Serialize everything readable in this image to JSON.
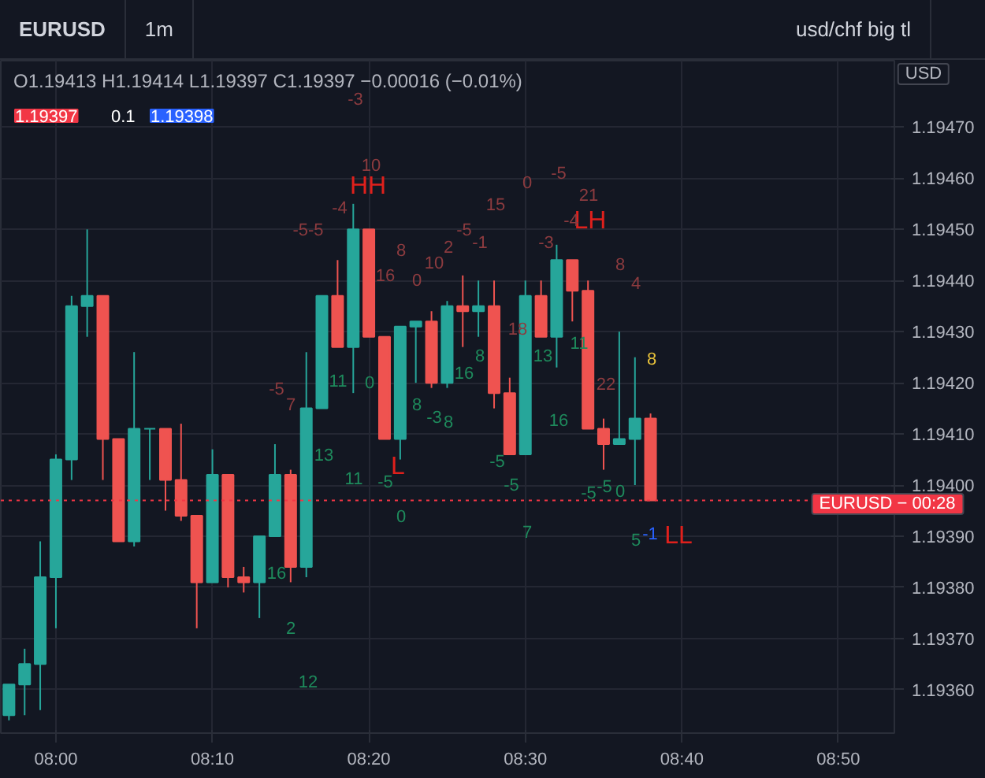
{
  "chart_data": {
    "type": "candlestick",
    "title": "EURUSD",
    "subtitle": "1m",
    "x": [
      7.95,
      7.9667,
      7.9833,
      8.0,
      8.0167,
      8.0333,
      8.05,
      8.0667,
      8.0833,
      8.1,
      8.1167,
      8.1333,
      8.15,
      8.1667,
      8.1833,
      8.2,
      8.2167,
      8.2333,
      8.25,
      8.2667,
      8.2833,
      8.3,
      8.3167,
      8.3333,
      8.35,
      8.3667,
      8.3833,
      8.4,
      8.4167,
      8.4333,
      8.45,
      8.4667,
      8.4833,
      8.5,
      8.5167,
      8.5333,
      8.55,
      8.5667,
      8.5833,
      8.6,
      8.6167,
      8.6333
    ],
    "ohlc": [
      [
        1.19355,
        1.19361,
        1.19354,
        1.19361
      ],
      [
        1.19361,
        1.19368,
        1.19355,
        1.19365
      ],
      [
        1.19365,
        1.19389,
        1.19356,
        1.19382
      ],
      [
        1.19382,
        1.19406,
        1.19372,
        1.19405
      ],
      [
        1.19405,
        1.19437,
        1.19401,
        1.19435
      ],
      [
        1.19435,
        1.1945,
        1.19429,
        1.19437
      ],
      [
        1.19437,
        1.19437,
        1.19401,
        1.19409
      ],
      [
        1.19409,
        1.19409,
        1.19389,
        1.19389
      ],
      [
        1.19389,
        1.19426,
        1.19388,
        1.19411
      ],
      [
        1.19411,
        1.19411,
        1.19401,
        1.19411
      ],
      [
        1.19411,
        1.19411,
        1.19395,
        1.19401
      ],
      [
        1.19401,
        1.19412,
        1.19393,
        1.19394
      ],
      [
        1.19394,
        1.19394,
        1.19372,
        1.19381
      ],
      [
        1.19381,
        1.19407,
        1.19381,
        1.19402
      ],
      [
        1.19402,
        1.19402,
        1.1938,
        1.19382
      ],
      [
        1.19382,
        1.19384,
        1.19379,
        1.19381
      ],
      [
        1.19381,
        1.1939,
        1.19374,
        1.1939
      ],
      [
        1.1939,
        1.19408,
        1.1939,
        1.19402
      ],
      [
        1.19402,
        1.19403,
        1.19381,
        1.19384
      ],
      [
        1.19384,
        1.19426,
        1.19382,
        1.19415
      ],
      [
        1.19415,
        1.19437,
        1.19415,
        1.19437
      ],
      [
        1.19437,
        1.19444,
        1.19427,
        1.19427
      ],
      [
        1.19427,
        1.19455,
        1.19418,
        1.1945
      ],
      [
        1.1945,
        1.1945,
        1.19429,
        1.19429
      ],
      [
        1.19429,
        1.19429,
        1.19409,
        1.19409
      ],
      [
        1.19409,
        1.19431,
        1.19405,
        1.19431
      ],
      [
        1.19431,
        1.19432,
        1.1942,
        1.19432
      ],
      [
        1.19432,
        1.19434,
        1.19419,
        1.1942
      ],
      [
        1.1942,
        1.19436,
        1.19419,
        1.19435
      ],
      [
        1.19435,
        1.19441,
        1.19427,
        1.19434
      ],
      [
        1.19434,
        1.1944,
        1.19429,
        1.19435
      ],
      [
        1.19435,
        1.1944,
        1.19415,
        1.19418
      ],
      [
        1.19418,
        1.19421,
        1.19406,
        1.19406
      ],
      [
        1.19406,
        1.1944,
        1.19406,
        1.19437
      ],
      [
        1.19437,
        1.1944,
        1.19429,
        1.19429
      ],
      [
        1.19429,
        1.19447,
        1.19423,
        1.19444
      ],
      [
        1.19444,
        1.19444,
        1.19432,
        1.19438
      ],
      [
        1.19438,
        1.1944,
        1.19411,
        1.19411
      ],
      [
        1.19411,
        1.19413,
        1.19403,
        1.19408
      ],
      [
        1.19408,
        1.1943,
        1.19408,
        1.19409
      ],
      [
        1.19409,
        1.19425,
        1.194,
        1.19413
      ],
      [
        1.19413,
        1.19414,
        1.19397,
        1.19397
      ]
    ],
    "colors": [
      "#26a69a",
      "#26a69a",
      "#26a69a",
      "#26a69a",
      "#26a69a",
      "#26a69a",
      "#ef5350",
      "#ef5350",
      "#26a69a",
      "#26a69a",
      "#ef5350",
      "#ef5350",
      "#ef5350",
      "#26a69a",
      "#ef5350",
      "#ef5350",
      "#26a69a",
      "#26a69a",
      "#ef5350",
      "#26a69a",
      "#26a69a",
      "#ef5350",
      "#26a69a",
      "#ef5350",
      "#ef5350",
      "#26a69a",
      "#26a69a",
      "#ef5350",
      "#26a69a",
      "#ef5350",
      "#26a69a",
      "#ef5350",
      "#ef5350",
      "#26a69a",
      "#ef5350",
      "#26a69a",
      "#ef5350",
      "#ef5350",
      "#ef5350",
      "#26a69a",
      "#26a69a",
      "#ef5350"
    ],
    "xlim": [
      7.9413,
      8.893
    ],
    "ylim": [
      1.193515,
      1.19483
    ],
    "xticks": [
      {
        "value": 8.0,
        "label": "08:00"
      },
      {
        "value": 8.1667,
        "label": "08:10"
      },
      {
        "value": 8.3333,
        "label": "08:20"
      },
      {
        "value": 8.5,
        "label": "08:30"
      },
      {
        "value": 8.6667,
        "label": "08:40"
      },
      {
        "value": 8.8333,
        "label": "08:50"
      }
    ],
    "yticks": [
      {
        "value": 1.1936,
        "label": "1.19360"
      },
      {
        "value": 1.1937,
        "label": "1.19370"
      },
      {
        "value": 1.1938,
        "label": "1.19380"
      },
      {
        "value": 1.1939,
        "label": "1.19390"
      },
      {
        "value": 1.194,
        "label": "1.19400"
      },
      {
        "value": 1.1941,
        "label": "1.19410"
      },
      {
        "value": 1.1942,
        "label": "1.19420"
      },
      {
        "value": 1.1943,
        "label": "1.19430"
      },
      {
        "value": 1.1944,
        "label": "1.19440"
      },
      {
        "value": 1.1945,
        "label": "1.19450"
      },
      {
        "value": 1.1946,
        "label": "1.19460"
      },
      {
        "value": 1.1947,
        "label": "1.19470"
      }
    ],
    "grid": true,
    "ref_lines": [
      {
        "axis": "y",
        "value": 1.19397,
        "color": "#f23645",
        "line_style": "dotted"
      }
    ],
    "annotations": [
      "usd/chf big tl",
      "O1.19413 H1.19414 L1.19397 C1.19397 −0.00016 (−0.01%)",
      "1.19397",
      "0.1",
      "1.19398",
      "USD",
      "EURUSD − 00:28",
      "-3",
      "10",
      "HH",
      "-4",
      "-5-5",
      "8",
      "16",
      "0",
      "10",
      "2",
      "-5",
      "-1",
      "15",
      "0",
      "-3",
      "-5",
      "21",
      "LH",
      "-4",
      "8",
      "4",
      "18",
      "13",
      "11",
      "16",
      "22",
      "8",
      "-5",
      "-5",
      "0",
      "5",
      "-1",
      "LL",
      "11",
      "0",
      "13",
      "11",
      "-5",
      "L",
      "8",
      "-3",
      "8",
      "16",
      "8",
      "-5",
      "-5",
      "0",
      "7",
      "-5",
      "7",
      "16",
      "2",
      "12"
    ]
  }
}
